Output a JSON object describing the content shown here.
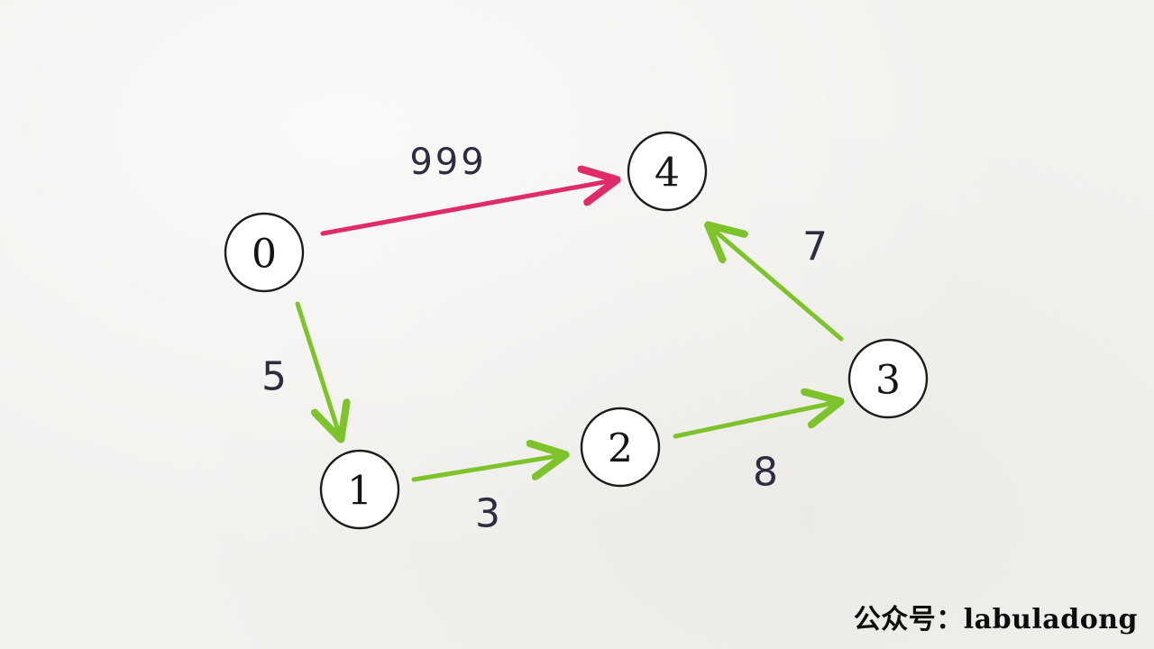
{
  "graph": {
    "nodes": [
      {
        "id": "0",
        "label": "0"
      },
      {
        "id": "1",
        "label": "1"
      },
      {
        "id": "2",
        "label": "2"
      },
      {
        "id": "3",
        "label": "3"
      },
      {
        "id": "4",
        "label": "4"
      }
    ],
    "edges": [
      {
        "from": "0",
        "to": "4",
        "weight": "999",
        "color": "#e02a6a"
      },
      {
        "from": "0",
        "to": "1",
        "weight": "5",
        "color": "#7cc42a"
      },
      {
        "from": "1",
        "to": "2",
        "weight": "3",
        "color": "#7cc42a"
      },
      {
        "from": "2",
        "to": "3",
        "weight": "8",
        "color": "#7cc42a"
      },
      {
        "from": "3",
        "to": "4",
        "weight": "7",
        "color": "#7cc42a"
      }
    ]
  },
  "watermark": "公众号：labuladong"
}
